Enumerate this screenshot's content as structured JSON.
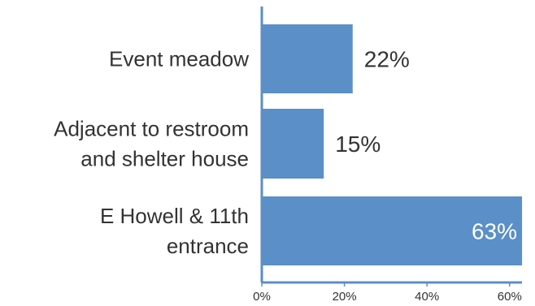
{
  "chart_data": {
    "type": "bar",
    "orientation": "horizontal",
    "categories": [
      [
        "Event meadow"
      ],
      [
        "Adjacent to restroom",
        "and shelter house"
      ],
      [
        "E Howell & 11th",
        "entrance"
      ]
    ],
    "values": [
      22,
      15,
      63
    ],
    "value_labels": [
      "22%",
      "15%",
      "63%"
    ],
    "xlim": [
      0,
      63
    ],
    "ticks": [
      0,
      20,
      40,
      60
    ],
    "tick_labels": [
      "0%",
      "20%",
      "40%",
      "60%"
    ],
    "bar_color": "#5b8fc7",
    "axis_color": "#5b8fc7",
    "label_color": "#333333",
    "inside_label_color": "#ffffff",
    "grid": false,
    "title": "",
    "xlabel": "",
    "ylabel": ""
  }
}
